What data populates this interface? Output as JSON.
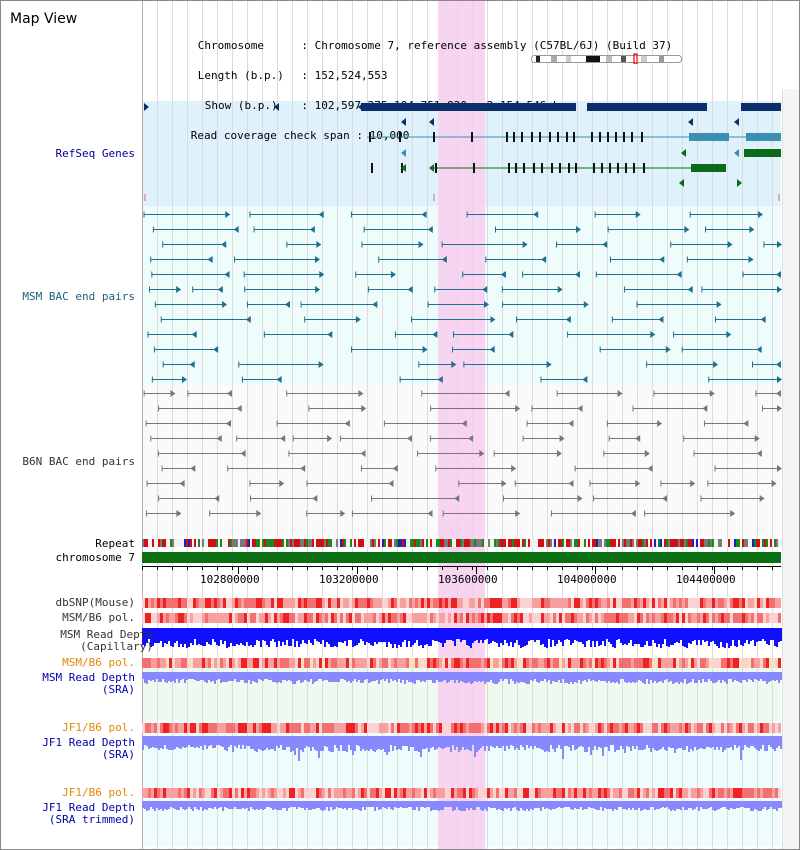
{
  "title": "Map View",
  "info": {
    "chromosome_label": "Chromosome",
    "chromosome_value": "Chromosome 7, reference assembly (C57BL/6J) (Build 37)",
    "length_label": "Length (b.p.)",
    "length_value": "152,524,553",
    "show_label": "Show (b.p.)",
    "show_value": "102,597,275-104,751,820 : 2,154,546 bp",
    "read_label": "Read coverage check span",
    "read_value": "10,000"
  },
  "tracks": {
    "refseq": "RefSeq Genes",
    "msm_bac": "MSM BAC end pairs",
    "b6n_bac": "B6N BAC end pairs",
    "repeat": "Repeat",
    "chromosome": "chromosome 7",
    "dbsnp": "dbSNP(Mouse)",
    "msm_b6_pol": "MSM/B6 pol.",
    "msm_read_depth_cap": "MSM Read Depth\n(Capillary)",
    "msm_b6_pol2": "MSM/B6 pol.",
    "msm_read_depth_sra": "MSM Read Depth\n(SRA)",
    "jf1_b6_pol": "JF1/B6 pol.",
    "jf1_read_depth_sra": "JF1 Read Depth\n(SRA)",
    "jf1_b6_pol2": "JF1/B6 pol.",
    "jf1_read_depth_trim": "JF1 Read Depth\n(SRA trimmed)"
  },
  "axis": {
    "ticks": [
      "102800000",
      "103200000",
      "103600000",
      "104000000",
      "104400000"
    ]
  },
  "colors": {
    "refseq_bg": "#dff2fb",
    "msm_bg": "#eefcfc",
    "highlight": "#f8d4f2",
    "gene_dark": "#0a2f6b",
    "gene_teal": "#3b8fb0",
    "gene_green": "#0a6b1a",
    "bac_teal": "#1f6f8f",
    "bac_gray": "#777777",
    "chrom_green": "#0a6e12",
    "depth_blue": "#1010ff",
    "depth_light": "#8888ff"
  }
}
